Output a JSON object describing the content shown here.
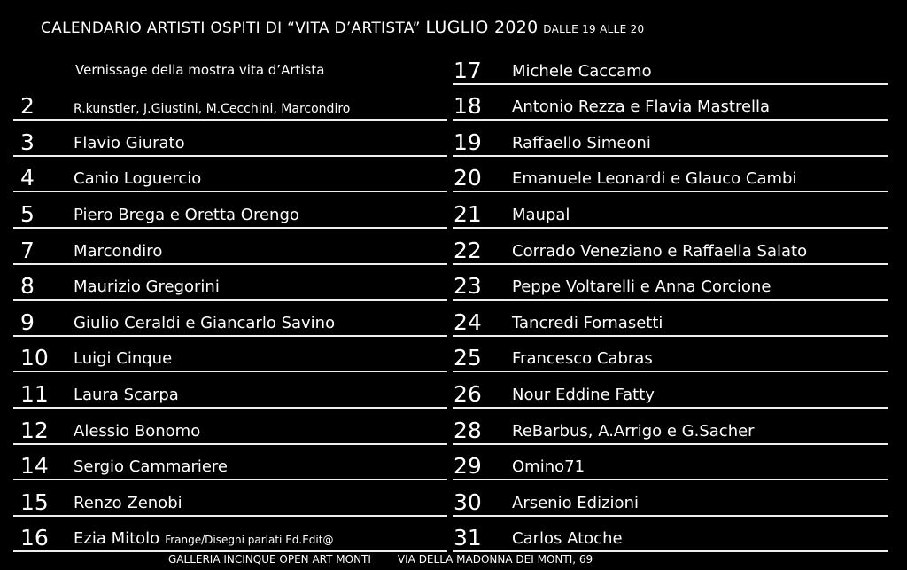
{
  "header": {
    "title": "CALENDARIO ARTISTI OSPITI DI “VITA D’ARTISTA”",
    "month": "LUGLIO 2020",
    "hours": "DALLE 19 ALLE 20"
  },
  "intro": "Vernissage della mostra vita d’Artista",
  "left": [
    {
      "day": "2",
      "name": "R.kunstler, J.Giustini, M.Cecchini, Marcondiro"
    },
    {
      "day": "3",
      "name": "Flavio Giurato"
    },
    {
      "day": "4",
      "name": "Canio Loguercio"
    },
    {
      "day": "5",
      "name": "Piero Brega e Oretta Orengo"
    },
    {
      "day": "7",
      "name": "Marcondiro"
    },
    {
      "day": "8",
      "name": "Maurizio Gregorini"
    },
    {
      "day": "9",
      "name": "Giulio Ceraldi e Giancarlo Savino"
    },
    {
      "day": "10",
      "name": "Luigi Cinque"
    },
    {
      "day": "11",
      "name": "Laura Scarpa"
    },
    {
      "day": "12",
      "name": "Alessio Bonomo"
    },
    {
      "day": "14",
      "name": "Sergio Cammariere"
    },
    {
      "day": "15",
      "name": "Renzo Zenobi"
    },
    {
      "day": "16",
      "name": "Ezia Mitolo",
      "extra": "Frange/Disegni parlati   Ed.Edit@"
    }
  ],
  "right": [
    {
      "day": "17",
      "name": "Michele Caccamo"
    },
    {
      "day": "18",
      "name": "Antonio Rezza e Flavia Mastrella"
    },
    {
      "day": "19",
      "name": "Raffaello Simeoni"
    },
    {
      "day": "20",
      "name": "Emanuele Leonardi e Glauco Cambi"
    },
    {
      "day": "21",
      "name": "Maupal"
    },
    {
      "day": "22",
      "name": "Corrado Veneziano e Raffaella Salato"
    },
    {
      "day": "23",
      "name": "Peppe Voltarelli e Anna Corcione"
    },
    {
      "day": "24",
      "name": "Tancredi Fornasetti"
    },
    {
      "day": "25",
      "name": "Francesco Cabras"
    },
    {
      "day": "26",
      "name": "Nour Eddine Fatty"
    },
    {
      "day": "28",
      "name": "ReBarbus, A.Arrigo e G.Sacher"
    },
    {
      "day": "29",
      "name": "Omino71"
    },
    {
      "day": "30",
      "name": "Arsenio Edizioni"
    },
    {
      "day": "31",
      "name": "Carlos Atoche"
    }
  ],
  "footer": {
    "venue": "GALLERIA INCINQUE OPEN ART MONTI",
    "address": "VIA DELLA MADONNA DEI MONTI, 69"
  }
}
